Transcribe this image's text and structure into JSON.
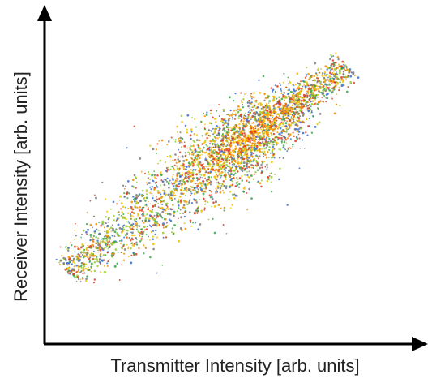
{
  "chart_data": {
    "type": "scatter",
    "title": "",
    "xlabel": "Transmitter Intensity [arb. units]",
    "ylabel": "Receiver Intensity [arb. units]",
    "x_ticks": [],
    "y_ticks": [],
    "grid": false,
    "legend": "none",
    "xlim": [
      0,
      1
    ],
    "ylim": [
      0,
      1
    ],
    "trend": {
      "x_start": 0.06,
      "y_start": 0.22,
      "x_end": 0.82,
      "y_end": 0.85
    },
    "density_peak": {
      "x": 0.55,
      "y": 0.63
    },
    "point_colors": [
      "#3b6fd1",
      "#3aa64a",
      "#9acd32",
      "#f2c200",
      "#f29100",
      "#e23b1e",
      "#7a7a7a"
    ]
  }
}
